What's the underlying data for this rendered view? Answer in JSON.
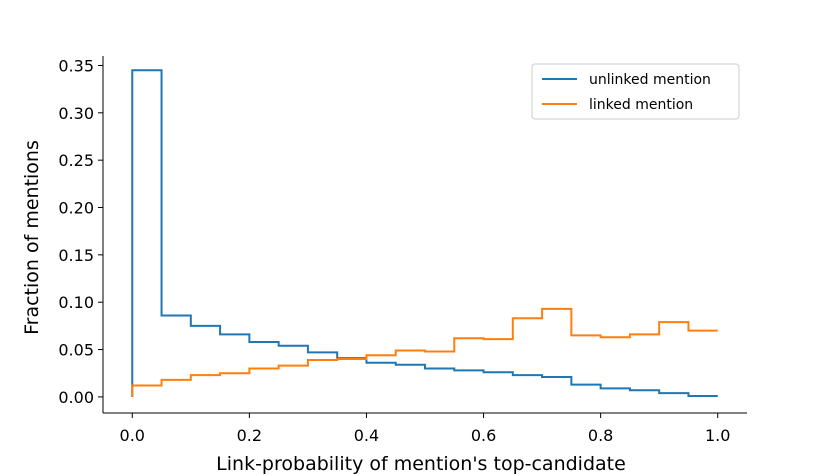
{
  "chart_data": {
    "type": "step-histogram",
    "xlabel": "Link-probability of mention's top-candidate",
    "ylabel": "Fraction of mentions",
    "xlim": [
      -0.05,
      1.05
    ],
    "ylim": [
      -0.017,
      0.36
    ],
    "xticks": [
      0.0,
      0.2,
      0.4,
      0.6,
      0.8,
      1.0
    ],
    "xtick_labels": [
      "0.0",
      "0.2",
      "0.4",
      "0.6",
      "0.8",
      "1.0"
    ],
    "yticks": [
      0.0,
      0.05,
      0.1,
      0.15,
      0.2,
      0.25,
      0.3,
      0.35
    ],
    "ytick_labels": [
      "0.00",
      "0.05",
      "0.10",
      "0.15",
      "0.20",
      "0.25",
      "0.30",
      "0.35"
    ],
    "bin_edges": [
      0.0,
      0.05,
      0.1,
      0.15,
      0.2,
      0.25,
      0.3,
      0.35,
      0.4,
      0.45,
      0.5,
      0.55,
      0.6,
      0.65,
      0.7,
      0.75,
      0.8,
      0.85,
      0.9,
      0.95,
      1.0
    ],
    "legend_position": "top-right",
    "grid": false,
    "series": [
      {
        "name": "unlinked mention",
        "color": "#1f77b4",
        "values": [
          0.345,
          0.086,
          0.075,
          0.066,
          0.058,
          0.054,
          0.047,
          0.041,
          0.036,
          0.034,
          0.03,
          0.028,
          0.026,
          0.023,
          0.021,
          0.013,
          0.009,
          0.007,
          0.004,
          0.001
        ]
      },
      {
        "name": "linked mention",
        "color": "#ff7f0e",
        "values": [
          0.012,
          0.018,
          0.023,
          0.025,
          0.03,
          0.033,
          0.039,
          0.04,
          0.044,
          0.049,
          0.048,
          0.062,
          0.061,
          0.083,
          0.093,
          0.065,
          0.063,
          0.066,
          0.079,
          0.07
        ]
      }
    ]
  }
}
